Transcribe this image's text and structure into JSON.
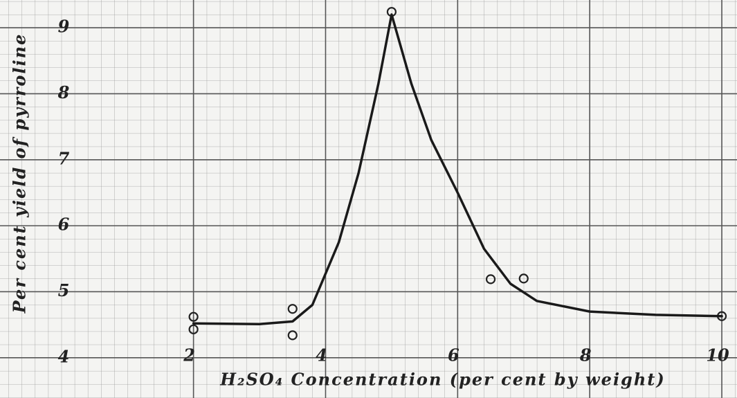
{
  "chart_data": {
    "type": "scatter",
    "x_label": "H₂SO₄ Concentration (per cent by weight)",
    "y_label": "Per cent yield of pyrroline",
    "xlim": [
      -0.93,
      10.23
    ],
    "ylim": [
      3.39,
      9.42
    ],
    "xticks": [
      2,
      4,
      6,
      8,
      10
    ],
    "yticks": [
      4,
      5,
      6,
      7,
      8,
      9
    ],
    "grid": true,
    "series": [
      {
        "type": "scatter",
        "color": "#222222",
        "x": [
          2,
          2,
          3.5,
          3.5,
          5,
          6.5,
          7,
          10
        ],
        "values": [
          4.62,
          4.43,
          4.74,
          4.34,
          9.24,
          5.19,
          5.2,
          4.63
        ]
      },
      {
        "type": "line",
        "color": "#1a1a1a",
        "x": [
          2,
          3,
          3.5,
          3.8,
          4.2,
          4.5,
          4.8,
          5,
          5.3,
          5.6,
          6,
          6.4,
          6.8,
          7.2,
          8,
          9,
          10
        ],
        "values": [
          4.52,
          4.51,
          4.55,
          4.8,
          5.75,
          6.8,
          8.15,
          9.2,
          8.15,
          7.3,
          6.5,
          5.65,
          5.12,
          4.86,
          4.7,
          4.65,
          4.63
        ]
      }
    ]
  }
}
